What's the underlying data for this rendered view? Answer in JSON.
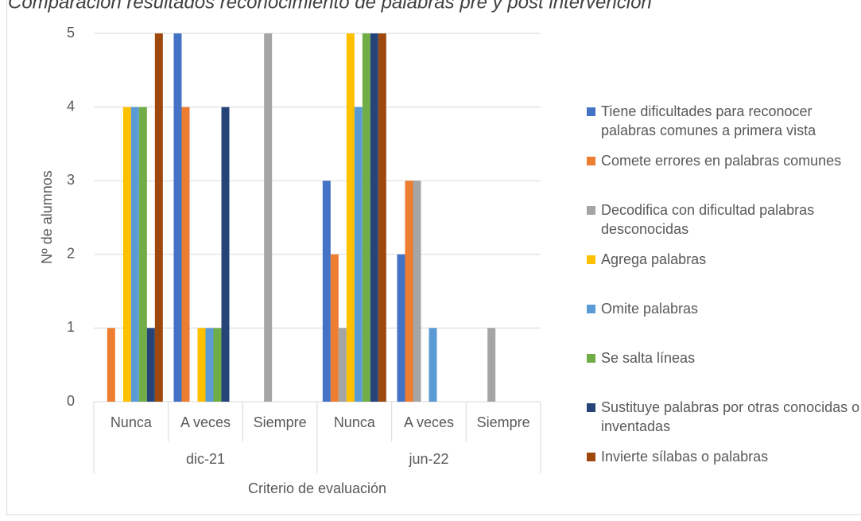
{
  "chart_data": {
    "type": "bar",
    "title": "Comparación resultados reconocimiento de palabras pre y post intervención",
    "ylabel": "Nº de alumnos",
    "xlabel": "Criterio de evaluación",
    "categories": [
      "Nunca",
      "A veces",
      "Siempre",
      "Nunca",
      "A veces",
      "Siempre"
    ],
    "groups": [
      "dic-21",
      "jun-22"
    ],
    "ylim": [
      0,
      5
    ],
    "yticks": [
      0,
      1,
      2,
      3,
      4,
      5
    ],
    "grid": true,
    "legend": "right",
    "series": [
      {
        "name": "Tiene dificultades para reconocer palabras comunes a primera vista",
        "color": "#4472c4",
        "values": [
          0,
          5,
          0,
          3,
          2,
          0
        ]
      },
      {
        "name": "Comete errores en palabras comunes",
        "color": "#ed7d31",
        "values": [
          1,
          4,
          0,
          2,
          3,
          0
        ]
      },
      {
        "name": "Decodifica con dificultad palabras desconocidas",
        "color": "#a5a5a5",
        "values": [
          0,
          0,
          5,
          1,
          3,
          1
        ]
      },
      {
        "name": "Agrega palabras",
        "color": "#ffc000",
        "values": [
          4,
          1,
          0,
          5,
          0,
          0
        ]
      },
      {
        "name": "Omite palabras",
        "color": "#5b9bd5",
        "values": [
          4,
          1,
          0,
          4,
          1,
          0
        ]
      },
      {
        "name": "Se salta líneas",
        "color": "#70ad47",
        "values": [
          4,
          1,
          0,
          5,
          0,
          0
        ]
      },
      {
        "name": "Sustituye palabras por otras conocidas o inventadas",
        "color": "#264478",
        "values": [
          1,
          4,
          0,
          5,
          0,
          0
        ]
      },
      {
        "name": "Invierte sílabas o palabras",
        "color": "#9e480e",
        "values": [
          5,
          0,
          0,
          5,
          0,
          0
        ]
      }
    ]
  }
}
